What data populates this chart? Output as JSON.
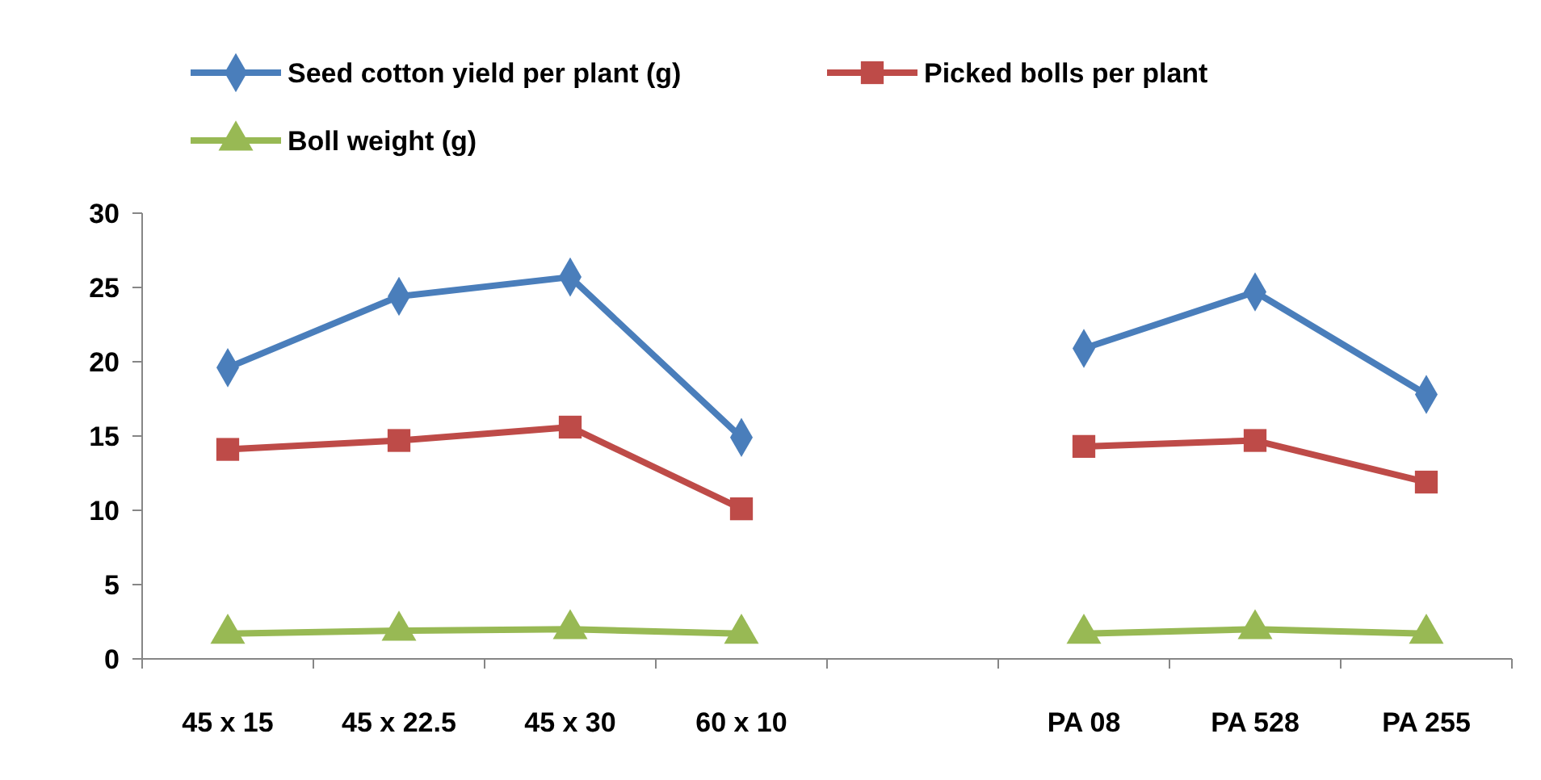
{
  "chart_data": {
    "type": "line",
    "categories": [
      "45 x 15",
      "45 x 22.5",
      "45 x 30",
      "60 x 10",
      null,
      "PA 08",
      "PA 528",
      "PA 255"
    ],
    "series": [
      {
        "name": "Seed cotton yield per plant (g)",
        "color": "#4a7ebb",
        "marker": "diamond",
        "values": [
          19.6,
          24.4,
          25.7,
          14.9,
          null,
          20.9,
          24.7,
          17.8
        ]
      },
      {
        "name": "Picked bolls per plant",
        "color": "#be4b48",
        "marker": "square",
        "values": [
          14.1,
          14.7,
          15.6,
          10.1,
          null,
          14.3,
          14.7,
          11.9
        ]
      },
      {
        "name": "Boll weight (g)",
        "color": "#98b954",
        "marker": "triangle",
        "values": [
          1.7,
          1.9,
          2.0,
          1.7,
          null,
          1.7,
          2.0,
          1.7
        ]
      }
    ],
    "ylim": [
      0,
      30
    ],
    "yticks": [
      0,
      5,
      10,
      15,
      20,
      25,
      30
    ],
    "grid": false,
    "legend": "top",
    "line_style": "solid"
  }
}
